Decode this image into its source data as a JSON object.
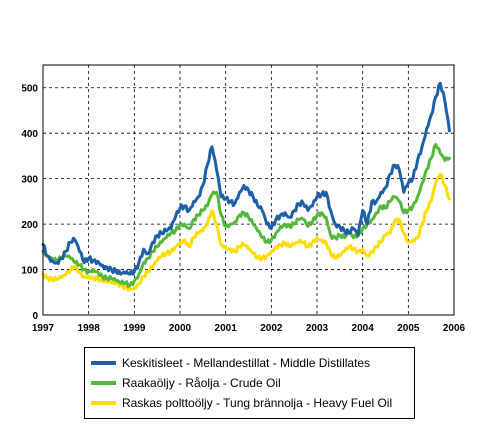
{
  "chart_data": {
    "type": "line",
    "x_range": [
      1997,
      2006
    ],
    "ylim": [
      0,
      550
    ],
    "grid": true,
    "legend_position": "bottom",
    "x_ticks": [
      "1997",
      "1998",
      "1999",
      "2000",
      "2001",
      "2002",
      "2003",
      "2004",
      "2005",
      "2006"
    ],
    "y_ticks": [
      "0",
      "100",
      "200",
      "300",
      "400",
      "500"
    ],
    "series": [
      {
        "name": "Keskitisleet - Mellandestillat - Middle Distillates",
        "color": "#1f5fa8",
        "x": [
          1997.0,
          1997.1,
          1997.2,
          1997.3,
          1997.4,
          1997.5,
          1997.6,
          1997.7,
          1997.8,
          1997.9,
          1998.0,
          1998.1,
          1998.2,
          1998.3,
          1998.4,
          1998.5,
          1998.6,
          1998.7,
          1998.8,
          1998.9,
          1999.0,
          1999.1,
          1999.2,
          1999.3,
          1999.4,
          1999.5,
          1999.6,
          1999.7,
          1999.8,
          1999.9,
          2000.0,
          2000.1,
          2000.2,
          2000.3,
          2000.4,
          2000.5,
          2000.6,
          2000.7,
          2000.8,
          2000.9,
          2001.0,
          2001.1,
          2001.2,
          2001.3,
          2001.4,
          2001.5,
          2001.6,
          2001.7,
          2001.8,
          2001.9,
          2002.0,
          2002.1,
          2002.2,
          2002.3,
          2002.4,
          2002.5,
          2002.6,
          2002.7,
          2002.8,
          2002.9,
          2003.0,
          2003.1,
          2003.2,
          2003.3,
          2003.4,
          2003.5,
          2003.6,
          2003.7,
          2003.8,
          2003.9,
          2004.0,
          2004.1,
          2004.2,
          2004.3,
          2004.4,
          2004.5,
          2004.6,
          2004.7,
          2004.8,
          2004.9,
          2005.0,
          2005.1,
          2005.2,
          2005.3,
          2005.4,
          2005.5,
          2005.6,
          2005.7,
          2005.8,
          2005.9
        ],
        "y": [
          155,
          130,
          120,
          115,
          125,
          140,
          160,
          165,
          140,
          115,
          125,
          120,
          118,
          110,
          105,
          100,
          95,
          90,
          92,
          90,
          95,
          115,
          145,
          135,
          160,
          175,
          180,
          185,
          190,
          215,
          235,
          240,
          230,
          250,
          260,
          285,
          330,
          370,
          320,
          260,
          255,
          250,
          245,
          270,
          285,
          275,
          260,
          240,
          230,
          200,
          190,
          210,
          220,
          225,
          215,
          230,
          245,
          245,
          230,
          240,
          260,
          265,
          270,
          230,
          200,
          195,
          185,
          180,
          190,
          175,
          230,
          200,
          250,
          250,
          270,
          280,
          310,
          330,
          320,
          270,
          290,
          300,
          340,
          370,
          410,
          440,
          480,
          510,
          470,
          405
        ],
        "jitter": 6
      },
      {
        "name": "Raakaöljy - Råolja - Crude Oil",
        "color": "#55b83d",
        "x": [
          1997.0,
          1997.1,
          1997.2,
          1997.3,
          1997.4,
          1997.5,
          1997.6,
          1997.7,
          1997.8,
          1997.9,
          1998.0,
          1998.1,
          1998.2,
          1998.3,
          1998.4,
          1998.5,
          1998.6,
          1998.7,
          1998.8,
          1998.9,
          1999.0,
          1999.1,
          1999.2,
          1999.3,
          1999.4,
          1999.5,
          1999.6,
          1999.7,
          1999.8,
          1999.9,
          2000.0,
          2000.1,
          2000.2,
          2000.3,
          2000.4,
          2000.5,
          2000.6,
          2000.7,
          2000.8,
          2000.9,
          2001.0,
          2001.1,
          2001.2,
          2001.3,
          2001.4,
          2001.5,
          2001.6,
          2001.7,
          2001.8,
          2001.9,
          2002.0,
          2002.1,
          2002.2,
          2002.3,
          2002.4,
          2002.5,
          2002.6,
          2002.7,
          2002.8,
          2002.9,
          2003.0,
          2003.1,
          2003.2,
          2003.3,
          2003.4,
          2003.5,
          2003.6,
          2003.7,
          2003.8,
          2003.9,
          2004.0,
          2004.1,
          2004.2,
          2004.3,
          2004.4,
          2004.5,
          2004.6,
          2004.7,
          2004.8,
          2004.9,
          2005.0,
          2005.1,
          2005.2,
          2005.3,
          2005.4,
          2005.5,
          2005.6,
          2005.7,
          2005.8,
          2005.9
        ],
        "y": [
          140,
          130,
          125,
          120,
          125,
          130,
          125,
          115,
          110,
          100,
          95,
          100,
          95,
          85,
          80,
          80,
          75,
          70,
          70,
          65,
          75,
          90,
          115,
          125,
          140,
          150,
          160,
          170,
          180,
          185,
          200,
          200,
          190,
          210,
          220,
          230,
          240,
          265,
          270,
          220,
          195,
          200,
          205,
          220,
          225,
          215,
          200,
          185,
          170,
          160,
          165,
          180,
          195,
          200,
          195,
          200,
          210,
          210,
          195,
          205,
          220,
          225,
          215,
          175,
          170,
          175,
          170,
          180,
          170,
          175,
          190,
          200,
          210,
          225,
          240,
          235,
          250,
          260,
          250,
          225,
          230,
          240,
          260,
          290,
          320,
          345,
          375,
          355,
          340,
          345
        ],
        "jitter": 5
      },
      {
        "name": "Raskas polttoöljy - Tung brännolja - Heavy Fuel Oil",
        "color": "#ffdd00",
        "x": [
          1997.0,
          1997.1,
          1997.2,
          1997.3,
          1997.4,
          1997.5,
          1997.6,
          1997.7,
          1997.8,
          1997.9,
          1998.0,
          1998.1,
          1998.2,
          1998.3,
          1998.4,
          1998.5,
          1998.6,
          1998.7,
          1998.8,
          1998.9,
          1999.0,
          1999.1,
          1999.2,
          1999.3,
          1999.4,
          1999.5,
          1999.6,
          1999.7,
          1999.8,
          1999.9,
          2000.0,
          2000.1,
          2000.2,
          2000.3,
          2000.4,
          2000.5,
          2000.6,
          2000.7,
          2000.8,
          2000.9,
          2001.0,
          2001.1,
          2001.2,
          2001.3,
          2001.4,
          2001.5,
          2001.6,
          2001.7,
          2001.8,
          2001.9,
          2002.0,
          2002.1,
          2002.2,
          2002.3,
          2002.4,
          2002.5,
          2002.6,
          2002.7,
          2002.8,
          2002.9,
          2003.0,
          2003.1,
          2003.2,
          2003.3,
          2003.4,
          2003.5,
          2003.6,
          2003.7,
          2003.8,
          2003.9,
          2004.0,
          2004.1,
          2004.2,
          2004.3,
          2004.4,
          2004.5,
          2004.6,
          2004.7,
          2004.8,
          2004.9,
          2005.0,
          2005.1,
          2005.2,
          2005.3,
          2005.4,
          2005.5,
          2005.6,
          2005.7,
          2005.8,
          2005.9
        ],
        "y": [
          90,
          82,
          78,
          78,
          82,
          88,
          98,
          108,
          95,
          85,
          85,
          82,
          80,
          75,
          72,
          70,
          70,
          65,
          62,
          58,
          60,
          70,
          85,
          95,
          105,
          120,
          130,
          135,
          140,
          150,
          160,
          165,
          150,
          170,
          180,
          185,
          200,
          230,
          200,
          155,
          150,
          145,
          140,
          150,
          155,
          145,
          135,
          125,
          125,
          130,
          140,
          150,
          155,
          158,
          150,
          155,
          160,
          160,
          150,
          160,
          170,
          165,
          160,
          135,
          125,
          130,
          140,
          150,
          145,
          140,
          145,
          130,
          140,
          150,
          160,
          175,
          180,
          205,
          210,
          180,
          160,
          165,
          170,
          200,
          230,
          250,
          290,
          310,
          285,
          255
        ],
        "jitter": 5
      }
    ]
  }
}
